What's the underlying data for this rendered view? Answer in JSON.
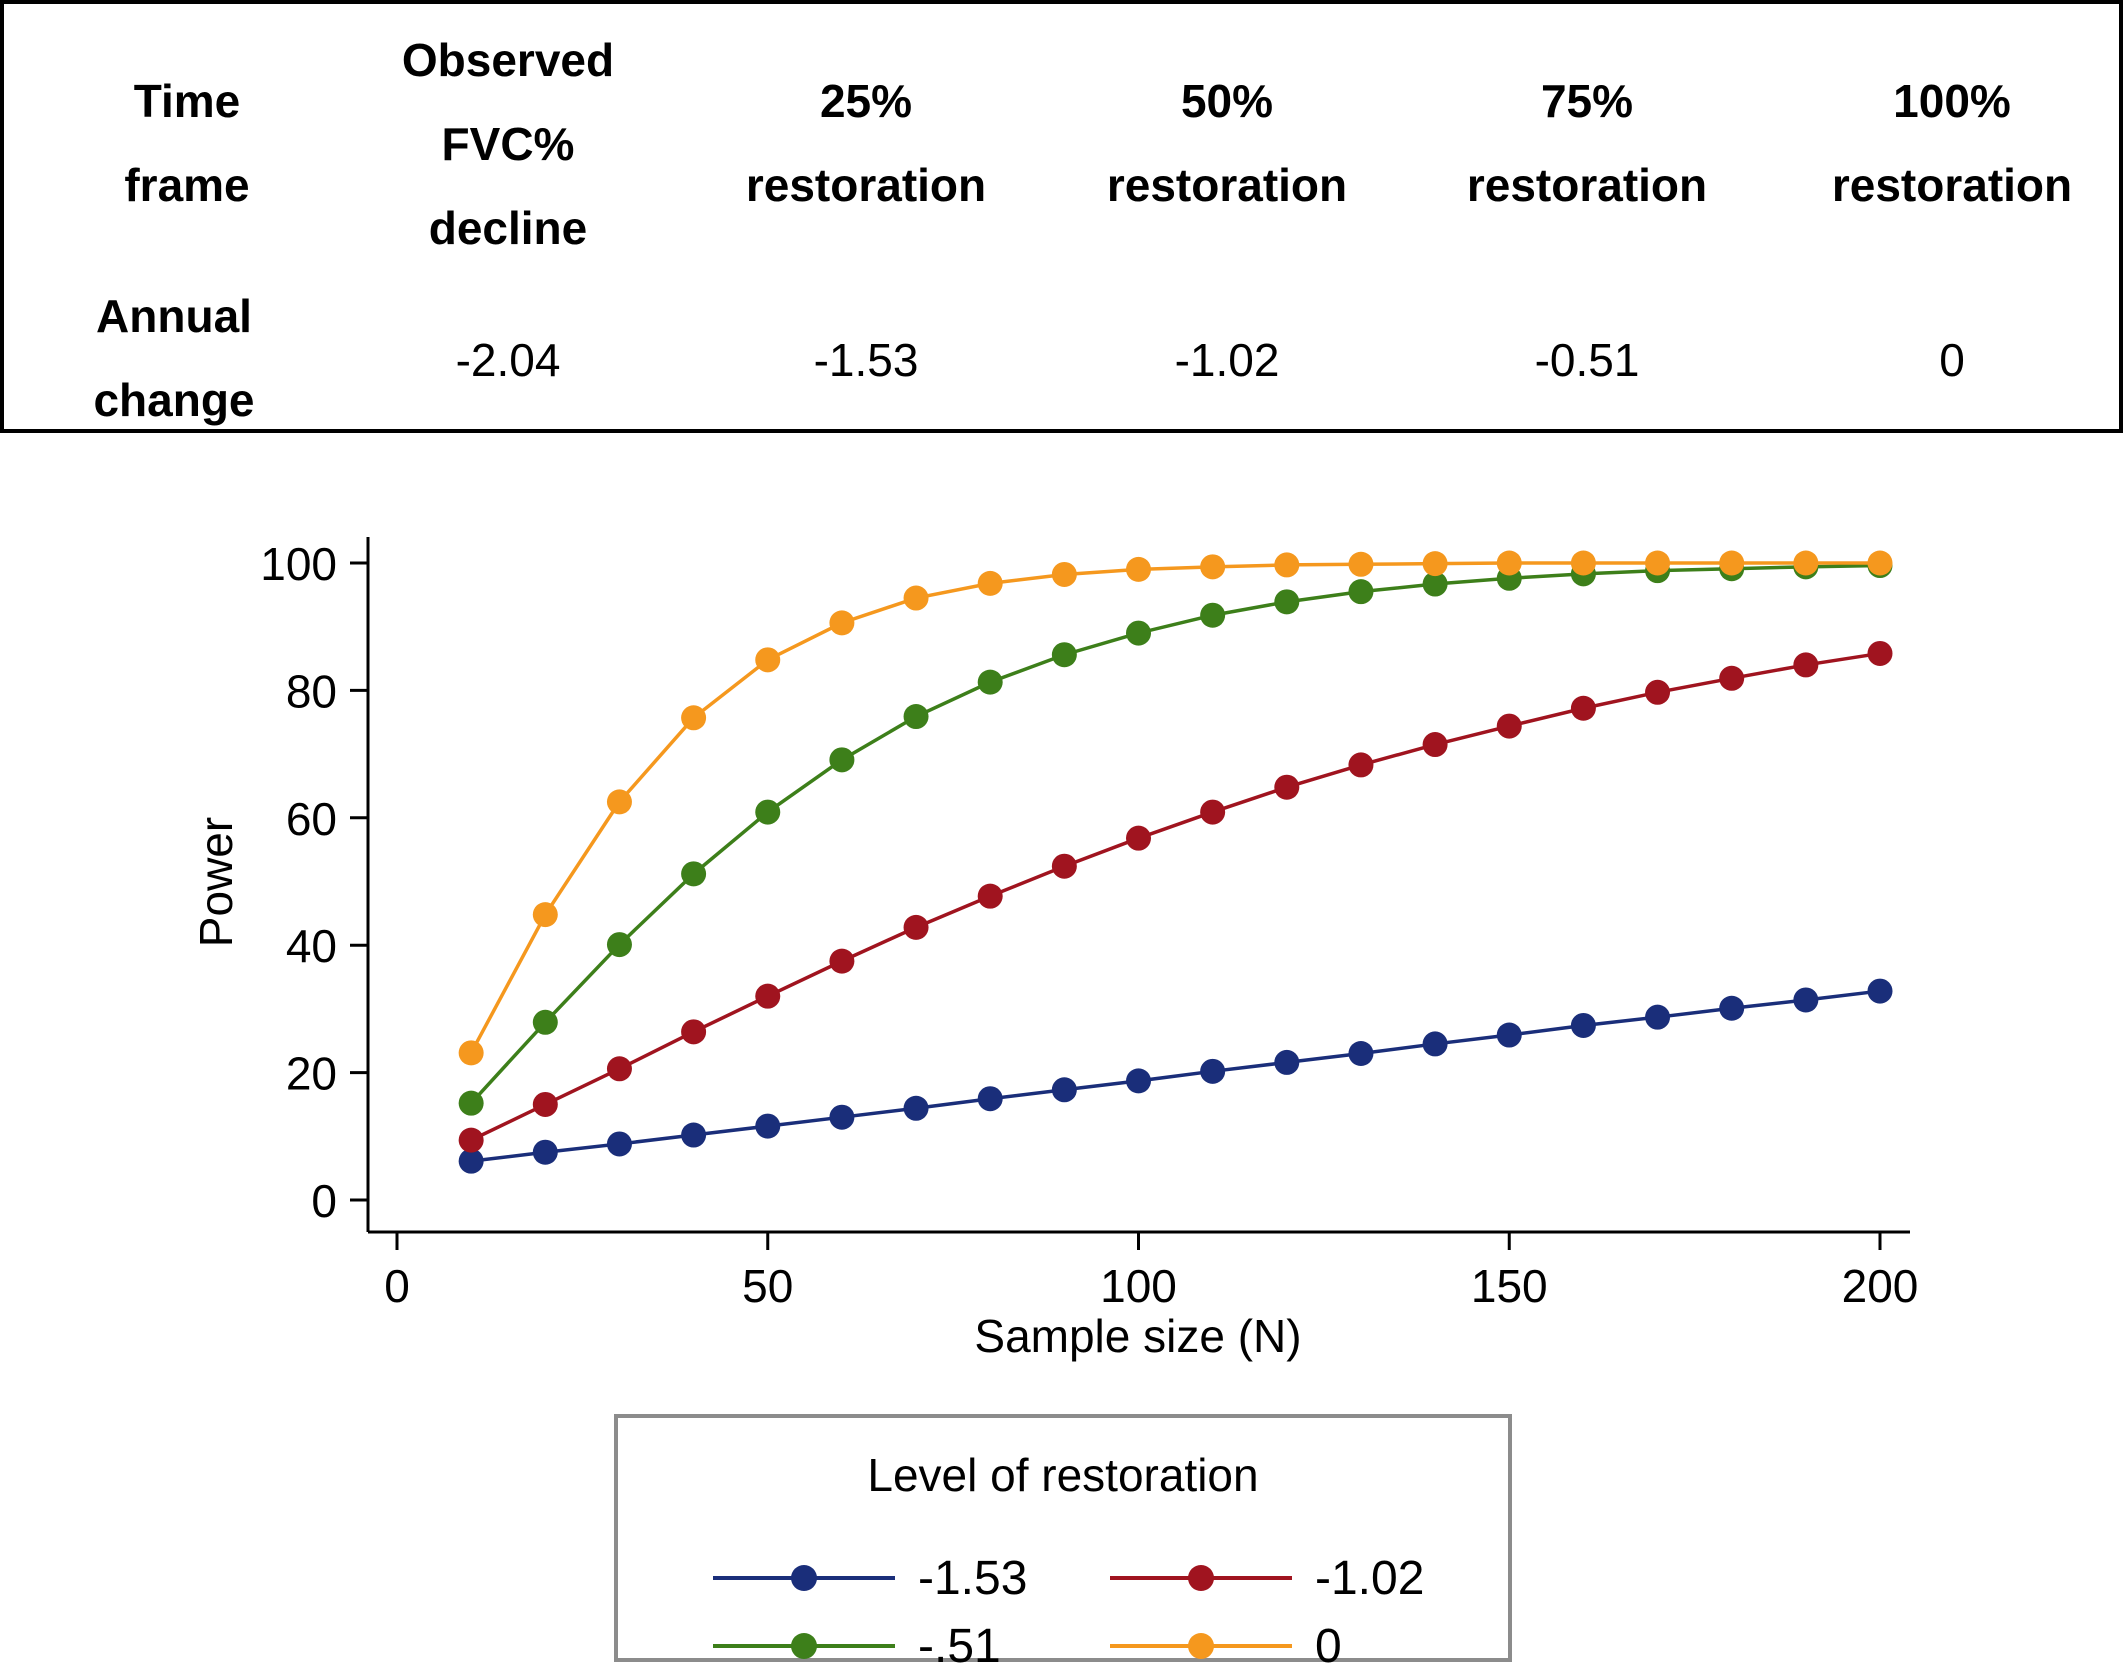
{
  "table": {
    "headers": [
      "Time frame",
      "Observed FVC% decline",
      "25% restoration",
      "50% restoration",
      "75% restoration",
      "100% restoration"
    ],
    "row_label": "Annual change",
    "values": [
      "-2.04",
      "-1.53",
      "-1.02",
      "-0.51",
      "0"
    ]
  },
  "chart_data": {
    "type": "line",
    "title": "",
    "xlabel": "Sample size (N)",
    "ylabel": "Power",
    "xlim": [
      0,
      200
    ],
    "ylim": [
      0,
      100
    ],
    "x_ticks": [
      "0",
      "50",
      "100",
      "150",
      "200"
    ],
    "y_ticks": [
      "0",
      "20",
      "40",
      "60",
      "80",
      "100"
    ],
    "x": [
      10,
      20,
      30,
      40,
      50,
      60,
      70,
      80,
      90,
      100,
      110,
      120,
      130,
      140,
      150,
      160,
      170,
      180,
      190,
      200
    ],
    "series": [
      {
        "name": "-1.53",
        "color": "#1a2e7a",
        "values": [
          6.1,
          7.5,
          8.8,
          10.2,
          11.6,
          13.0,
          14.4,
          15.9,
          17.3,
          18.7,
          20.2,
          21.6,
          23.0,
          24.5,
          25.9,
          27.4,
          28.7,
          30.1,
          31.4,
          32.8
        ]
      },
      {
        "name": "-1.02",
        "color": "#a0141f",
        "values": [
          9.4,
          15.0,
          20.6,
          26.4,
          32.0,
          37.5,
          42.8,
          47.7,
          52.4,
          56.8,
          60.9,
          64.8,
          68.3,
          71.5,
          74.4,
          77.2,
          79.7,
          81.9,
          84.0,
          85.8
        ]
      },
      {
        "name": "-.51",
        "color": "#3d7f1a",
        "values": [
          15.2,
          27.9,
          40.1,
          51.2,
          60.9,
          69.1,
          75.9,
          81.3,
          85.6,
          89.0,
          91.8,
          93.9,
          95.5,
          96.7,
          97.6,
          98.3,
          98.8,
          99.1,
          99.4,
          99.6
        ]
      },
      {
        "name": "0",
        "color": "#f5981e",
        "values": [
          23.1,
          44.8,
          62.5,
          75.7,
          84.8,
          90.6,
          94.5,
          96.8,
          98.2,
          99.0,
          99.4,
          99.7,
          99.8,
          99.9,
          100.0,
          100.0,
          100.0,
          100.0,
          100.0,
          100.0
        ]
      }
    ],
    "legend": {
      "title": "Level of restoration",
      "placement": "bottom"
    }
  }
}
